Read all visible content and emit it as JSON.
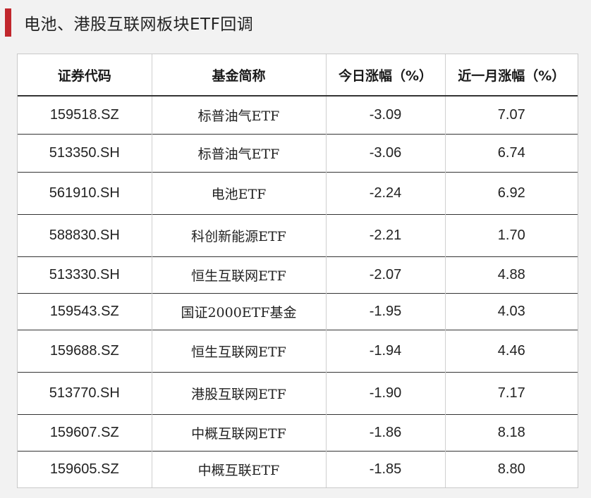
{
  "title": "电池、港股互联网板块ETF回调",
  "accent_color": "#c1272d",
  "table": {
    "headers": [
      "证券代码",
      "基金简称",
      "今日涨幅（%）",
      "近一月涨幅（%）"
    ],
    "rows": [
      {
        "code": "159518.SZ",
        "name": "标普油气ETF",
        "today": "-3.09",
        "month": "7.07"
      },
      {
        "code": "513350.SH",
        "name": "标普油气ETF",
        "today": "-3.06",
        "month": "6.74"
      },
      {
        "code": "561910.SH",
        "name": "电池ETF",
        "today": "-2.24",
        "month": "6.92"
      },
      {
        "code": "588830.SH",
        "name": "科创新能源ETF",
        "today": "-2.21",
        "month": "1.70"
      },
      {
        "code": "513330.SH",
        "name": "恒生互联网ETF",
        "today": "-2.07",
        "month": "4.88"
      },
      {
        "code": "159543.SZ",
        "name": "国证2000ETF基金",
        "today": "-1.95",
        "month": "4.03"
      },
      {
        "code": "159688.SZ",
        "name": "恒生互联网ETF",
        "today": "-1.94",
        "month": "4.46"
      },
      {
        "code": "513770.SH",
        "name": "港股互联网ETF",
        "today": "-1.90",
        "month": "7.17"
      },
      {
        "code": "159607.SZ",
        "name": "中概互联网ETF",
        "today": "-1.86",
        "month": "8.18"
      },
      {
        "code": "159605.SZ",
        "name": "中概互联ETF",
        "today": "-1.85",
        "month": "8.80"
      }
    ]
  }
}
